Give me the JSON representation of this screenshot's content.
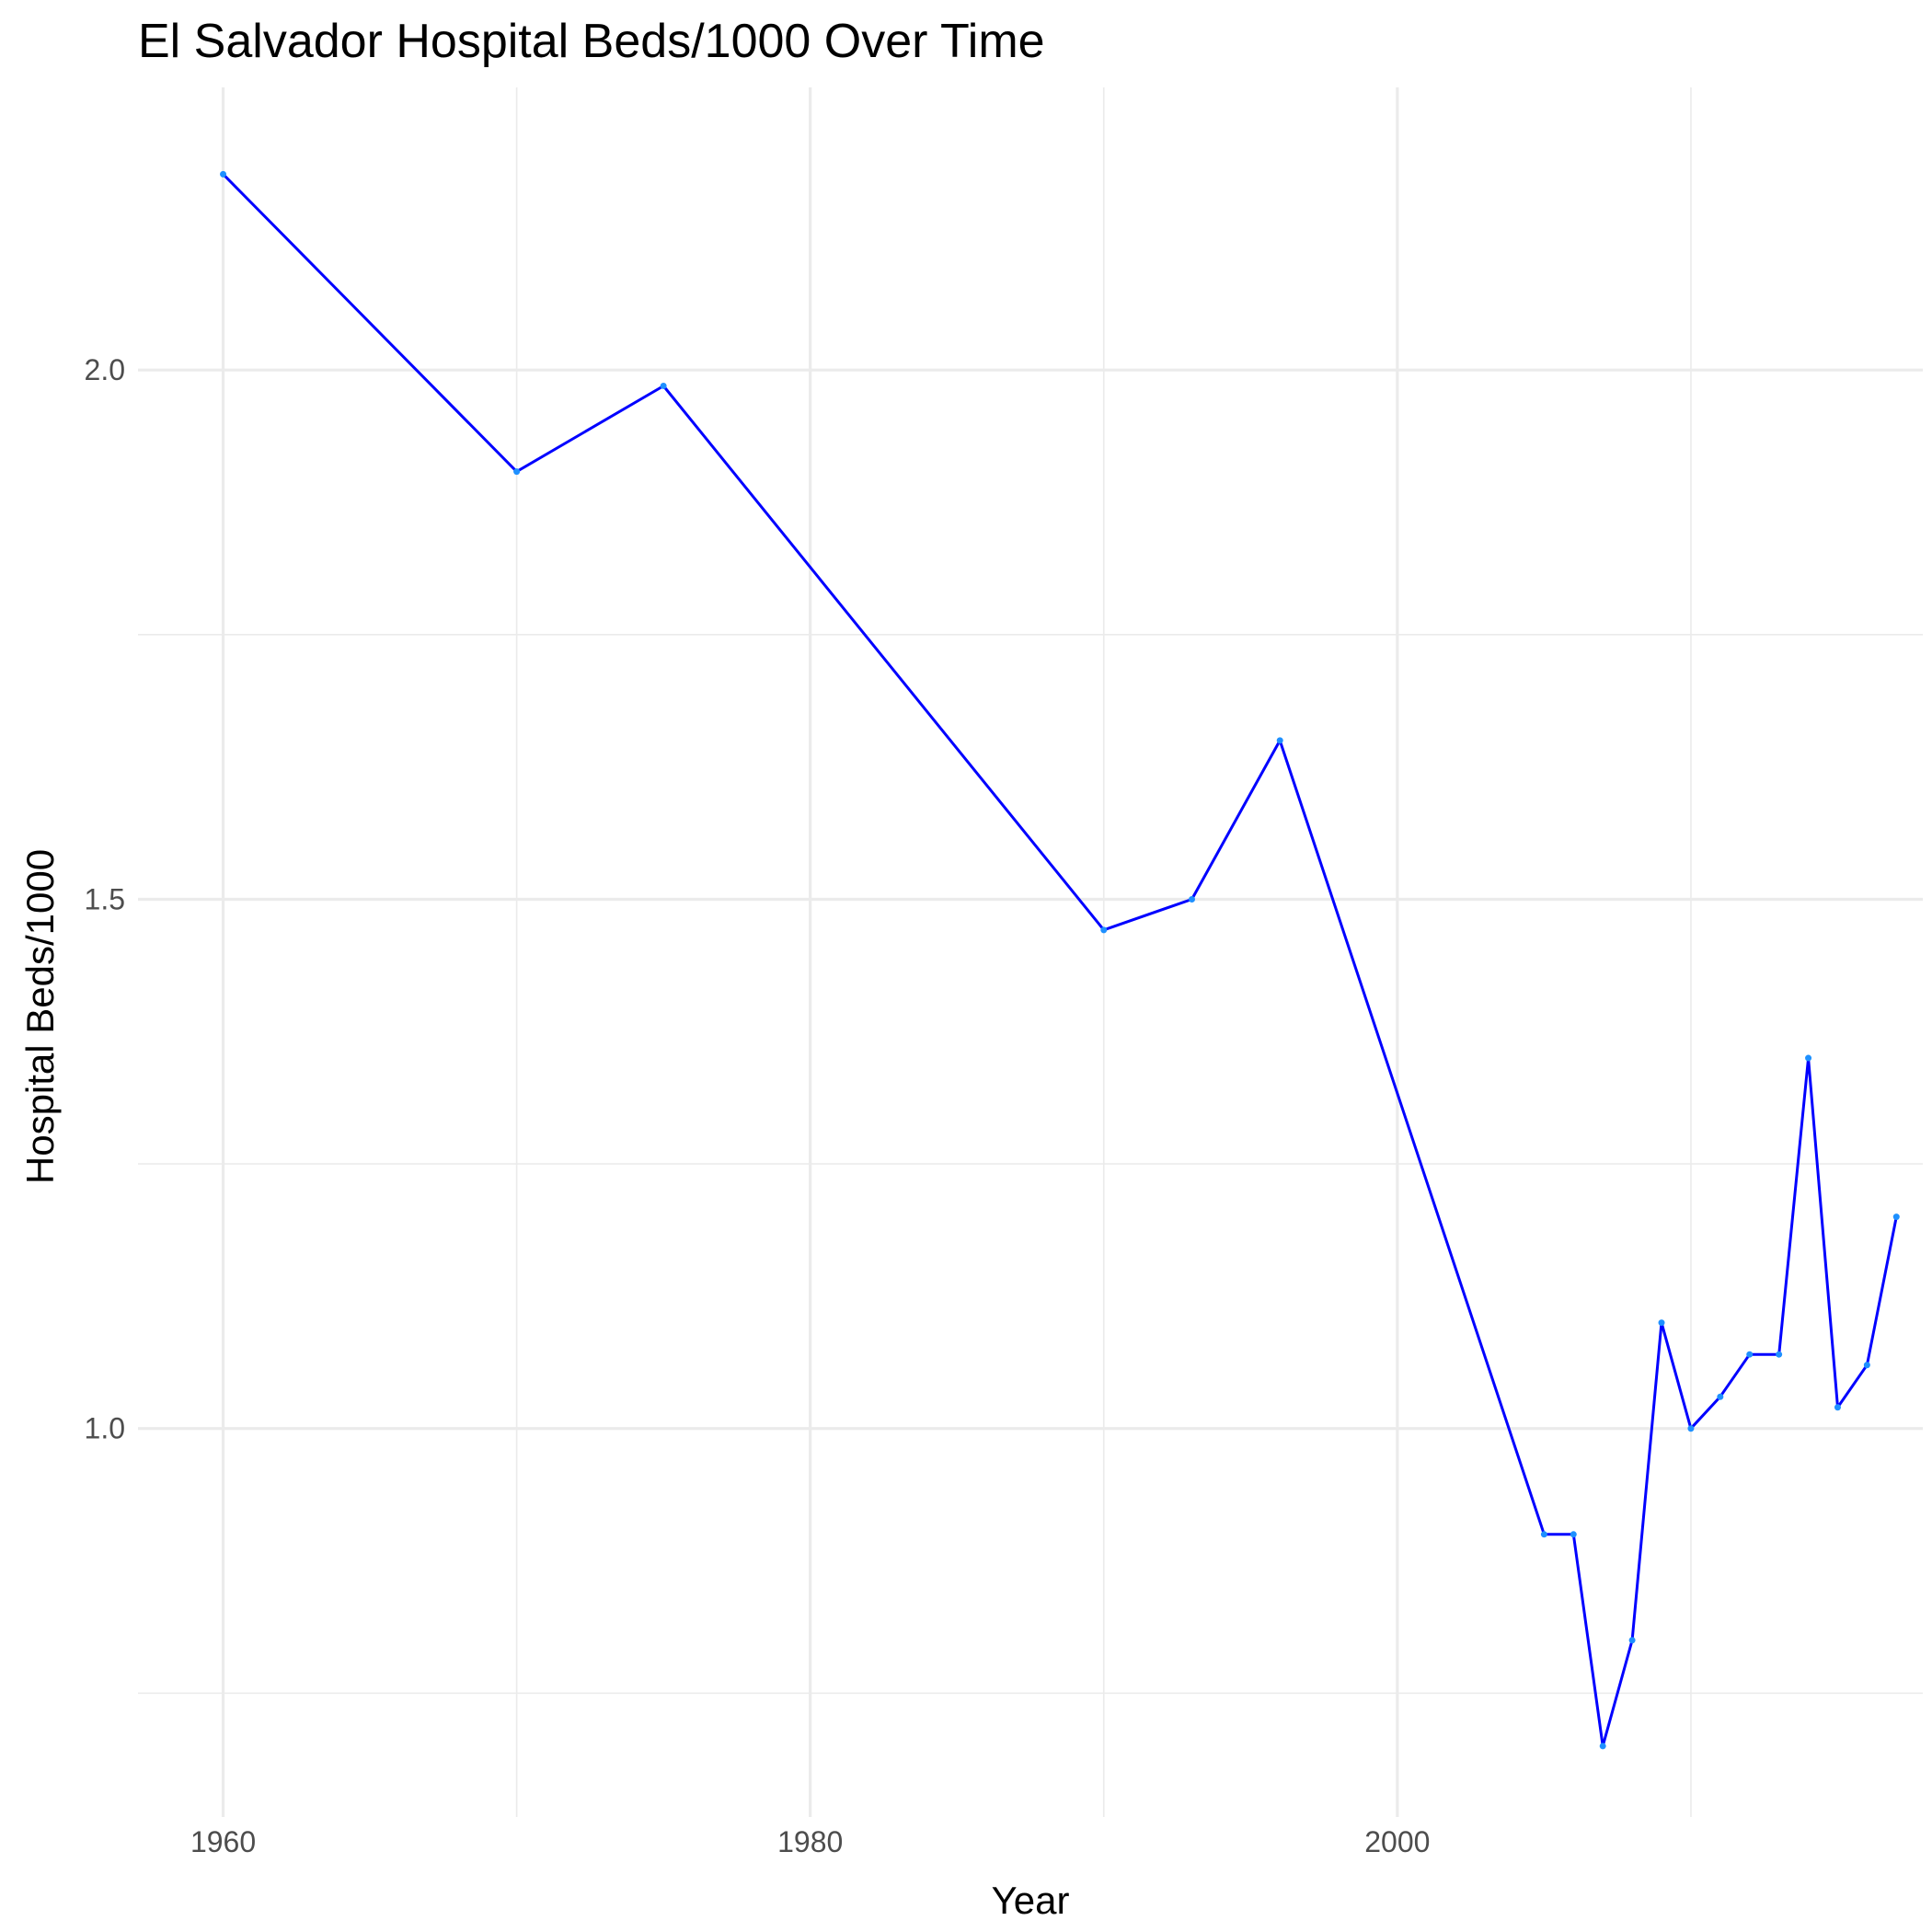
{
  "chart_data": {
    "type": "line",
    "title": "El Salvador Hospital Beds/1000 Over Time",
    "xlabel": "Year",
    "ylabel": "Hospital Beds/1000",
    "xlim": [
      1957.1,
      2017.9
    ],
    "ylim": [
      0.633,
      2.267
    ],
    "x_ticks": [
      1960,
      1980,
      2000
    ],
    "y_ticks": [
      1.0,
      1.5,
      2.0
    ],
    "x_minor": [
      1970,
      1990,
      2010
    ],
    "y_minor": [
      0.75,
      1.25,
      1.75
    ],
    "grid": true,
    "line_color": "#0000FF",
    "point_color": "#1E90FF",
    "grid_color": "#EBEBEB",
    "series": [
      {
        "x": [
          1960,
          1970,
          1975,
          1990,
          1993,
          1996,
          2005,
          2006,
          2007,
          2008,
          2009,
          2010,
          2011,
          2012,
          2013,
          2014,
          2015,
          2016,
          2017
        ],
        "y": [
          2.185,
          1.904,
          1.985,
          1.471,
          1.5,
          1.65,
          0.9,
          0.9,
          0.7,
          0.8,
          1.1,
          1.0,
          1.03,
          1.07,
          1.07,
          1.35,
          1.02,
          1.06,
          1.2
        ]
      }
    ]
  }
}
